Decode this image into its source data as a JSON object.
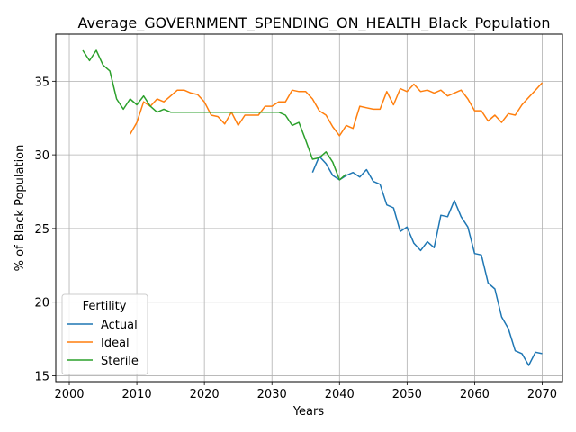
{
  "chart_data": {
    "type": "line",
    "title": "Average_GOVERNMENT_SPENDING_ON_HEALTH_Black_Population",
    "xlabel": "Years",
    "ylabel": "% of Black Population",
    "xlim": [
      1998,
      2073
    ],
    "ylim": [
      14.6,
      38.2
    ],
    "xticks": [
      2000,
      2010,
      2020,
      2030,
      2040,
      2050,
      2060,
      2070
    ],
    "yticks": [
      15,
      20,
      25,
      30,
      35
    ],
    "grid": true,
    "legend": {
      "title": "Fertility",
      "placement": "lower-left"
    },
    "series": [
      {
        "name": "Actual",
        "color": "#1f77b4",
        "x": [
          2036,
          2037,
          2038,
          2039,
          2040,
          2041,
          2042,
          2043,
          2044,
          2045,
          2046,
          2047,
          2048,
          2049,
          2050,
          2051,
          2052,
          2053,
          2054,
          2055,
          2056,
          2057,
          2058,
          2059,
          2060,
          2061,
          2062,
          2063,
          2064,
          2065,
          2066,
          2067,
          2068,
          2069,
          2070
        ],
        "y": [
          28.8,
          29.9,
          29.4,
          28.6,
          28.3,
          28.6,
          28.8,
          28.5,
          29.0,
          28.2,
          28.0,
          26.6,
          26.4,
          24.8,
          25.1,
          24.0,
          23.5,
          24.1,
          23.7,
          25.9,
          25.8,
          26.9,
          25.8,
          25.1,
          23.3,
          23.2,
          21.3,
          20.9,
          19.0,
          18.2,
          16.7,
          16.5,
          15.7,
          16.6,
          16.5
        ]
      },
      {
        "name": "Ideal",
        "color": "#ff7f0e",
        "x": [
          2009,
          2010,
          2011,
          2012,
          2013,
          2014,
          2015,
          2016,
          2017,
          2018,
          2019,
          2020,
          2021,
          2022,
          2023,
          2024,
          2025,
          2026,
          2027,
          2028,
          2029,
          2030,
          2031,
          2032,
          2033,
          2034,
          2035,
          2036,
          2037,
          2038,
          2039,
          2040,
          2041,
          2042,
          2043,
          2044,
          2045,
          2046,
          2047,
          2048,
          2049,
          2050,
          2051,
          2052,
          2053,
          2054,
          2055,
          2056,
          2057,
          2058,
          2059,
          2060,
          2061,
          2062,
          2063,
          2064,
          2065,
          2066,
          2067,
          2068,
          2069,
          2070
        ],
        "y": [
          31.4,
          32.2,
          33.6,
          33.3,
          33.8,
          33.6,
          34.0,
          34.4,
          34.4,
          34.2,
          34.1,
          33.6,
          32.7,
          32.6,
          32.1,
          32.9,
          32.0,
          32.7,
          32.7,
          32.7,
          33.3,
          33.3,
          33.6,
          33.6,
          34.4,
          34.3,
          34.3,
          33.8,
          33.0,
          32.7,
          31.9,
          31.3,
          32.0,
          31.8,
          33.3,
          33.2,
          33.1,
          33.1,
          34.3,
          33.4,
          34.5,
          34.3,
          34.8,
          34.3,
          34.4,
          34.2,
          34.4,
          34.0,
          34.2,
          34.4,
          33.8,
          33.0,
          33.0,
          32.3,
          32.7,
          32.2,
          32.8,
          32.7,
          33.4,
          33.9,
          34.4,
          34.9
        ]
      },
      {
        "name": "Sterile",
        "color": "#2ca02c",
        "x": [
          2002,
          2003,
          2004,
          2005,
          2006,
          2007,
          2008,
          2009,
          2010,
          2011,
          2012,
          2013,
          2014,
          2015,
          2016,
          2017,
          2018,
          2019,
          2020,
          2021,
          2022,
          2023,
          2024,
          2025,
          2026,
          2027,
          2028,
          2029,
          2030,
          2031,
          2032,
          2033,
          2034,
          2035,
          2036,
          2037,
          2038,
          2039,
          2040,
          2041
        ],
        "y": [
          37.1,
          36.4,
          37.1,
          36.1,
          35.7,
          33.8,
          33.1,
          33.8,
          33.4,
          34.0,
          33.3,
          32.9,
          33.1,
          32.9,
          32.9,
          32.9,
          32.9,
          32.9,
          32.9,
          32.9,
          32.9,
          32.9,
          32.9,
          32.9,
          32.9,
          32.9,
          32.9,
          32.9,
          32.9,
          32.9,
          32.7,
          32.0,
          32.2,
          31.0,
          29.7,
          29.8,
          30.2,
          29.5,
          28.3,
          28.7
        ]
      }
    ]
  }
}
